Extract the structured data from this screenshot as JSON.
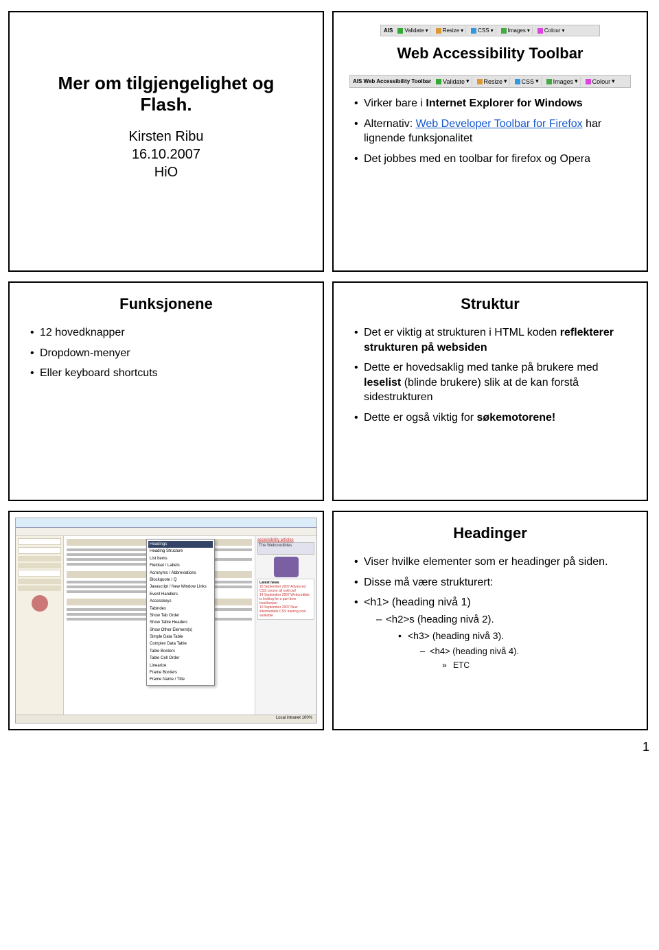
{
  "slide1": {
    "title_line1": "Mer om tilgjengelighet og",
    "title_line2": "Flash.",
    "author": "Kirsten Ribu",
    "date": "16.10.2007",
    "org": "HiO"
  },
  "slide2": {
    "title": "Web Accessibility Toolbar",
    "toolbar_small": {
      "label": "AIS",
      "items": [
        "Validate",
        "Resize",
        "CSS",
        "Images",
        "Colour"
      ]
    },
    "toolbar_wide": {
      "label": "AIS Web Accessibility Toolbar",
      "items": [
        "Validate",
        "Resize",
        "CSS",
        "Images",
        "Colour"
      ]
    },
    "bullets": [
      {
        "pre": "Virker bare i ",
        "b": "Internet Explorer for Windows"
      },
      {
        "pre": "Alternativ: ",
        "link": "Web Developer Toolbar for Firefox",
        "post": " har lignende funksjonalitet"
      },
      {
        "pre": "Det jobbes med en toolbar for firefox og Opera"
      }
    ]
  },
  "slide3": {
    "title": "Funksjonene",
    "bullets": [
      "12 hovedknapper",
      "Dropdown-menyer",
      "Eller keyboard shortcuts"
    ]
  },
  "slide4": {
    "title": "Struktur",
    "b1_pre": "Det er viktig at strukturen i HTML koden ",
    "b1_b": "reflekterer strukturen på websiden",
    "b2_pre": "Dette er hovedsaklig med tanke på brukere med ",
    "b2_b": "leselist",
    "b2_post": " (blinde brukere) slik at de kan forstå sidestrukturen",
    "b3_pre": "Dette er også viktig for ",
    "b3_b": "søkemotorene!"
  },
  "slide5": {
    "menu_items": [
      "Headings",
      "Heading Structure",
      "List Items",
      "Fieldset / Labels",
      "Acronyms / Abbreviations",
      "Blockquote / Q",
      "Javascript / New Window Links",
      "Event Handlers",
      "Accesskeys",
      "Tabindex",
      "Show Tab Order",
      "Show Table Headers",
      "Show Other Element(s)",
      "Simple Data Table",
      "Complex Data Table",
      "Table Borders",
      "Table Cell Order",
      "Linearize",
      "Frame Borders",
      "Frame Name / Title"
    ],
    "right_header": "The Webcredibles",
    "right_link": "accessibility articles",
    "news_title": "Latest news",
    "news_items": [
      "16 September 2007 Advanced CSS course all sold out!",
      "14 September 2007 Webcredible is looking for a part-time bookkeeper",
      "10 September 2007 New intermediate CSS training now available"
    ],
    "status": "Local intranet    100%"
  },
  "slide6": {
    "title": "Headinger",
    "b1": "Viser hvilke elementer som er headinger på siden.",
    "b2": "Disse må være strukturert:",
    "h1": "<h1> (heading nivå 1)",
    "h2": "<h2>s (heading nivå 2).",
    "h3": "<h3> (heading nivå 3).",
    "h4": "<h4> (heading nivå 4).",
    "etc": "ETC"
  },
  "page_number": "1"
}
